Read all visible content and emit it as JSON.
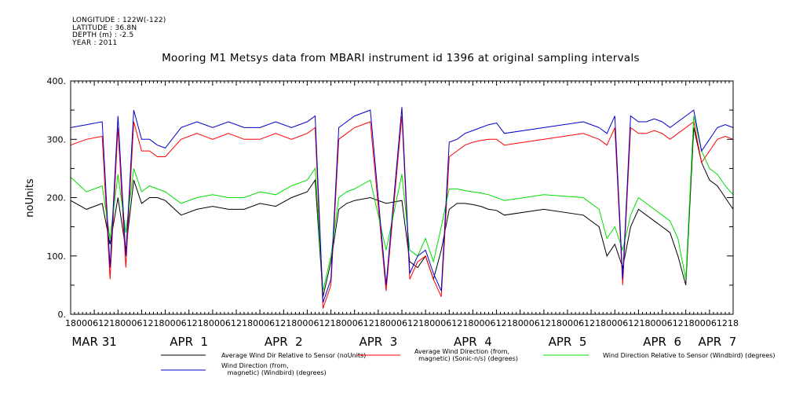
{
  "meta": {
    "longitude": "LONGITUDE : 122W(-122)",
    "latitude": "LATITUDE : 36.8N",
    "depth": "DEPTH (m) : -2.5",
    "year": "YEAR : 2011"
  },
  "chart_data": {
    "type": "line",
    "title": "Mooring M1 Metsys data from MBARI instrument id 1396 at original sampling intervals",
    "ylabel": "noUnits",
    "xlabel": "",
    "ylim": [
      0,
      400
    ],
    "yticks": [
      "0.",
      "100.",
      "200.",
      "300.",
      "400."
    ],
    "xlim_hours": [
      0,
      168
    ],
    "hour_ticks": [
      "18",
      "00",
      "06",
      "12",
      "18",
      "00",
      "06",
      "12",
      "18",
      "00",
      "06",
      "12",
      "18",
      "00",
      "06",
      "12",
      "18",
      "00",
      "06",
      "12",
      "18",
      "00",
      "06",
      "12",
      "18",
      "00",
      "06",
      "12",
      "18",
      "00",
      "06",
      "12",
      "18",
      "00",
      "06",
      "12",
      "18",
      "00",
      "06",
      "12",
      "18",
      "00",
      "06",
      "12",
      "18",
      "00",
      "06",
      "12",
      "18",
      "00",
      "06",
      "12",
      "18",
      "00",
      "06",
      "12",
      "18",
      "00",
      "06",
      "12",
      "18"
    ],
    "day_labels": [
      "MAR 31",
      "APR  1",
      "APR  2",
      "APR  3",
      "APR  4",
      "APR  5",
      "APR  6",
      "APR  7"
    ],
    "colors": {
      "black": "#000000",
      "red": "#ff0000",
      "green": "#00dd00",
      "blue": "#0000cc"
    },
    "series": [
      {
        "name": "Average Wind Dir Relative to Sensor (noUnits)",
        "color": "#000000",
        "x": [
          0,
          4,
          8,
          10,
          12,
          14,
          16,
          18,
          20,
          22,
          24,
          28,
          32,
          36,
          40,
          44,
          48,
          52,
          56,
          60,
          62,
          64,
          66,
          68,
          70,
          72,
          76,
          80,
          84,
          86,
          88,
          90,
          92,
          94,
          96,
          98,
          100,
          102,
          104,
          106,
          108,
          110,
          120,
          130,
          134,
          136,
          138,
          140,
          142,
          144,
          146,
          148,
          150,
          152,
          154,
          156,
          158,
          160,
          162,
          164,
          166,
          168
        ],
        "y": [
          195,
          180,
          190,
          120,
          200,
          110,
          230,
          190,
          200,
          200,
          195,
          170,
          180,
          185,
          180,
          180,
          190,
          185,
          200,
          210,
          230,
          30,
          90,
          180,
          190,
          195,
          200,
          190,
          195,
          90,
          80,
          100,
          60,
          110,
          180,
          190,
          190,
          188,
          185,
          180,
          178,
          170,
          180,
          170,
          150,
          100,
          120,
          80,
          150,
          180,
          170,
          160,
          150,
          140,
          100,
          50,
          320,
          260,
          230,
          220,
          200,
          180
        ]
      },
      {
        "name": "Average Wind Direction (from, magnetic) (Sonic-n/s) (degrees)",
        "color": "#ff0000",
        "x": [
          0,
          4,
          8,
          10,
          12,
          14,
          16,
          18,
          20,
          22,
          24,
          28,
          32,
          36,
          40,
          44,
          48,
          52,
          56,
          60,
          62,
          64,
          66,
          68,
          70,
          72,
          76,
          80,
          84,
          86,
          88,
          90,
          92,
          94,
          96,
          98,
          100,
          102,
          104,
          106,
          108,
          110,
          120,
          130,
          134,
          136,
          138,
          140,
          142,
          144,
          146,
          148,
          150,
          152,
          154,
          156,
          158,
          160,
          162,
          164,
          166,
          168
        ],
        "y": [
          290,
          300,
          305,
          60,
          320,
          80,
          330,
          280,
          280,
          270,
          270,
          300,
          310,
          300,
          310,
          300,
          300,
          310,
          300,
          310,
          320,
          10,
          50,
          300,
          310,
          320,
          330,
          40,
          340,
          60,
          90,
          100,
          60,
          30,
          270,
          280,
          290,
          295,
          298,
          300,
          300,
          290,
          300,
          310,
          300,
          290,
          320,
          50,
          320,
          310,
          310,
          315,
          310,
          300,
          310,
          320,
          330,
          260,
          280,
          300,
          305,
          300
        ]
      },
      {
        "name": "Wind Direction Relative to Sensor (Windbird) (degrees)",
        "color": "#00dd00",
        "x": [
          0,
          4,
          8,
          10,
          12,
          14,
          16,
          18,
          20,
          22,
          24,
          28,
          32,
          36,
          40,
          44,
          48,
          52,
          56,
          60,
          62,
          64,
          66,
          68,
          70,
          72,
          76,
          80,
          84,
          86,
          88,
          90,
          92,
          94,
          96,
          98,
          100,
          102,
          104,
          106,
          108,
          110,
          120,
          130,
          134,
          136,
          138,
          140,
          142,
          144,
          146,
          148,
          150,
          152,
          154,
          156,
          158,
          160,
          162,
          164,
          166,
          168
        ],
        "y": [
          235,
          210,
          220,
          130,
          240,
          140,
          250,
          210,
          220,
          215,
          210,
          190,
          200,
          205,
          200,
          200,
          210,
          205,
          220,
          230,
          250,
          40,
          100,
          200,
          210,
          215,
          230,
          110,
          240,
          110,
          100,
          130,
          90,
          150,
          215,
          215,
          212,
          210,
          208,
          205,
          200,
          195,
          205,
          200,
          180,
          130,
          150,
          110,
          170,
          200,
          190,
          180,
          170,
          160,
          130,
          60,
          340,
          280,
          250,
          240,
          220,
          205
        ]
      },
      {
        "name": "Wind Direction (from, magnetic) (Windbird) (degrees)",
        "color": "#0000cc",
        "x": [
          0,
          4,
          8,
          10,
          12,
          14,
          16,
          18,
          20,
          22,
          24,
          28,
          32,
          36,
          40,
          44,
          48,
          52,
          56,
          60,
          62,
          64,
          66,
          68,
          70,
          72,
          76,
          80,
          84,
          86,
          88,
          90,
          92,
          94,
          96,
          98,
          100,
          102,
          104,
          106,
          108,
          110,
          120,
          130,
          134,
          136,
          138,
          140,
          142,
          144,
          146,
          148,
          150,
          152,
          154,
          156,
          158,
          160,
          162,
          164,
          166,
          168
        ],
        "y": [
          320,
          325,
          330,
          80,
          340,
          100,
          350,
          300,
          300,
          290,
          285,
          320,
          330,
          320,
          330,
          320,
          320,
          330,
          320,
          330,
          340,
          20,
          60,
          320,
          330,
          340,
          350,
          50,
          355,
          70,
          100,
          110,
          70,
          40,
          295,
          300,
          310,
          315,
          320,
          325,
          328,
          310,
          320,
          330,
          320,
          310,
          340,
          60,
          340,
          330,
          330,
          335,
          330,
          320,
          330,
          340,
          350,
          280,
          300,
          320,
          325,
          320
        ]
      }
    ],
    "legend_position": "bottom"
  }
}
